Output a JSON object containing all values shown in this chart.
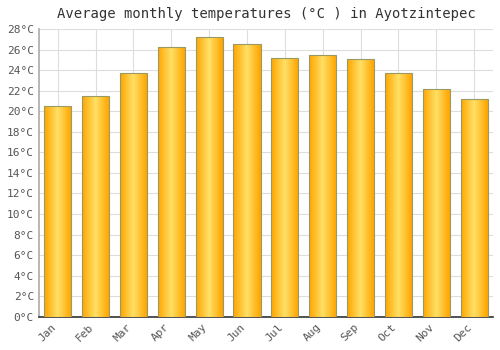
{
  "title": "Average monthly temperatures (°C ) in Ayotzintepec",
  "months": [
    "Jan",
    "Feb",
    "Mar",
    "Apr",
    "May",
    "Jun",
    "Jul",
    "Aug",
    "Sep",
    "Oct",
    "Nov",
    "Dec"
  ],
  "values": [
    20.5,
    21.5,
    23.7,
    26.3,
    27.2,
    26.5,
    25.2,
    25.5,
    25.1,
    23.7,
    22.2,
    21.2
  ],
  "bar_color_main": "#FFA500",
  "bar_color_light": "#FFD700",
  "bar_edge_color": "#B8860B",
  "background_color": "#FFFFFF",
  "plot_bg_color": "#FFFFFF",
  "grid_color": "#DDDDDD",
  "ylim": [
    0,
    28
  ],
  "ytick_step": 2,
  "title_fontsize": 10,
  "tick_fontsize": 8,
  "font_family": "monospace"
}
